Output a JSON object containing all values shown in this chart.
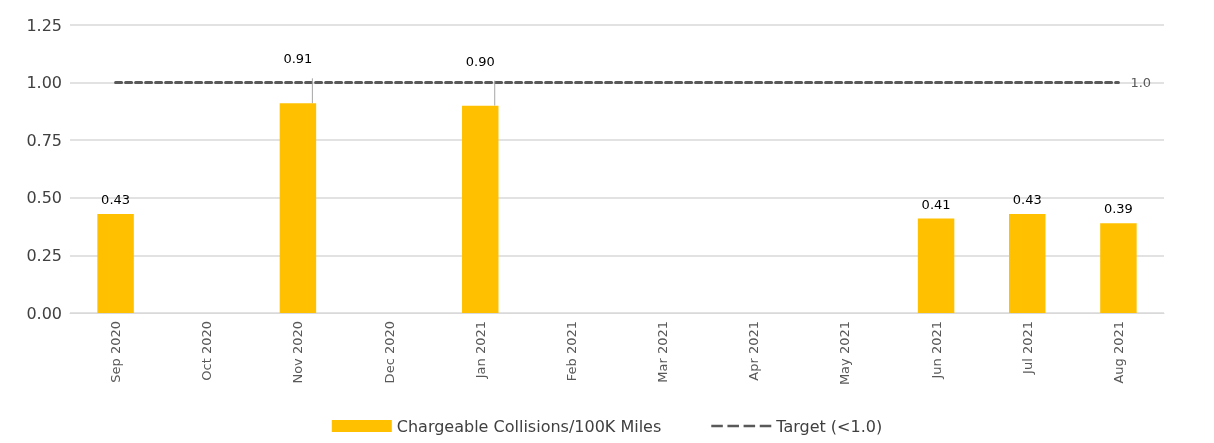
{
  "chart_data": {
    "type": "bar",
    "categories": [
      "Sep 2020",
      "Oct 2020",
      "Nov 2020",
      "Dec 2020",
      "Jan 2021",
      "Feb 2021",
      "Mar 2021",
      "Apr 2021",
      "May 2021",
      "Jun 2021",
      "Jul 2021",
      "Aug 2021"
    ],
    "series": [
      {
        "name": "Chargeable Collisions/100K Miles",
        "color": "#ffc000",
        "values": [
          0.43,
          null,
          0.91,
          null,
          0.9,
          null,
          null,
          null,
          null,
          0.41,
          0.43,
          0.39
        ],
        "value_labels": [
          "0.43",
          null,
          "0.91",
          null,
          "0.90",
          null,
          null,
          null,
          null,
          "0.41",
          "0.43",
          "0.39"
        ]
      },
      {
        "name": "Target (<1.0)",
        "type": "line",
        "color": "#595959",
        "line_style": "dashed",
        "marker": "none",
        "values": [
          1.0,
          1.0,
          1.0,
          1.0,
          1.0,
          1.0,
          1.0,
          1.0,
          1.0,
          1.0,
          1.0,
          1.0
        ],
        "value_labels": [
          null,
          null,
          null,
          null,
          null,
          null,
          null,
          null,
          null,
          null,
          null,
          "1.0"
        ]
      }
    ],
    "ylim": [
      0,
      1.25
    ],
    "yticks": [
      "0.00",
      "0.25",
      "0.50",
      "0.75",
      "1.00",
      "1.25"
    ],
    "grid": "y",
    "legend": "bottom"
  }
}
